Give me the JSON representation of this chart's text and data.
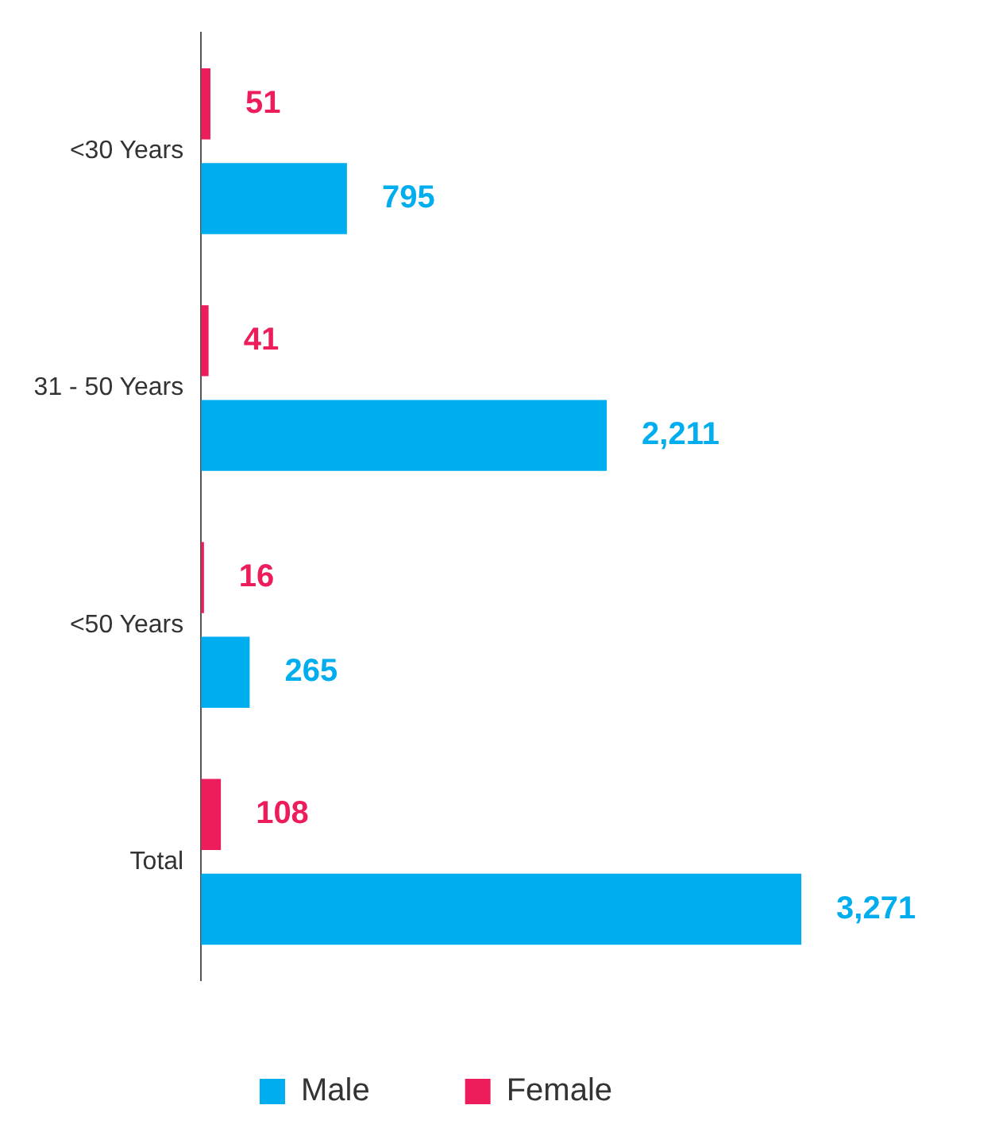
{
  "chart_data": {
    "type": "bar",
    "orientation": "horizontal",
    "categories": [
      "<30 Years",
      "31 - 50 Years",
      "<50 Years",
      "Total"
    ],
    "series": [
      {
        "name": "Female",
        "color": "#ed1c5b",
        "values": [
          51,
          41,
          16,
          108
        ],
        "value_labels": [
          "51",
          "41",
          "16",
          "108"
        ]
      },
      {
        "name": "Male",
        "color": "#00aeef",
        "values": [
          795,
          2211,
          265,
          3271
        ],
        "value_labels": [
          "795",
          "2,211",
          "265",
          "3,271"
        ]
      }
    ],
    "grid": false,
    "legend": "bottom"
  }
}
